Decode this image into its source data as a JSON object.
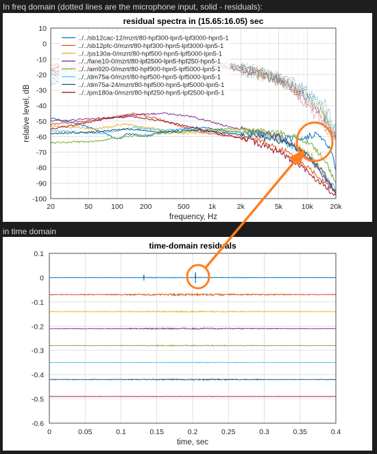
{
  "captions": {
    "freq": "In freq domain (dotted lines are the microphone input, solid - residuals):",
    "time": "in time domain"
  },
  "annotation_color": "#ff7f1e",
  "chart_data": [
    {
      "type": "line",
      "title": "residual spectra in (15.65:16.05) sec",
      "xlabel": "frequency, Hz",
      "ylabel": "relative level, dB",
      "xscale": "log",
      "xlim": [
        20,
        20000
      ],
      "ylim": [
        -100,
        10
      ],
      "xticks": [
        "20",
        "50",
        "100",
        "200",
        "500",
        "1k",
        "2k",
        "5k",
        "10k",
        "20k"
      ],
      "yticks": [
        "10",
        "0",
        "-10",
        "-20",
        "-30",
        "-40",
        "-50",
        "-60",
        "-70",
        "-80",
        "-90",
        "-100"
      ],
      "grid": true,
      "legend_position": "top-left",
      "series": [
        {
          "name": "../../sb12cac-12/mzrt/80-hpf300-lpn5-lpf3000-hpn5-1",
          "color": "#0072bd",
          "residual": [
            [
              20,
              -48
            ],
            [
              40,
              -52
            ],
            [
              70,
              -57
            ],
            [
              100,
              -62
            ],
            [
              130,
              -58
            ],
            [
              200,
              -60
            ],
            [
              300,
              -57
            ],
            [
              500,
              -55
            ],
            [
              700,
              -54
            ],
            [
              1000,
              -55
            ],
            [
              2000,
              -57
            ],
            [
              4000,
              -58
            ],
            [
              6000,
              -61
            ],
            [
              9000,
              -62
            ],
            [
              12000,
              -58
            ],
            [
              15000,
              -62
            ],
            [
              18000,
              -70
            ],
            [
              20000,
              -82
            ]
          ],
          "input": [
            [
              20,
              -20
            ],
            [
              200,
              -12
            ],
            [
              600,
              -10
            ],
            [
              1200,
              -12
            ],
            [
              3000,
              -18
            ],
            [
              7000,
              -25
            ],
            [
              15000,
              -38
            ],
            [
              20000,
              -55
            ]
          ]
        },
        {
          "name": "../../sb12pfc-0/mzrt/80-hpf300-hpn5-lpf3000-lpn5-1",
          "color": "#d95319",
          "residual": [
            [
              20,
              -52
            ],
            [
              50,
              -50
            ],
            [
              100,
              -47
            ],
            [
              150,
              -45
            ],
            [
              250,
              -48
            ],
            [
              400,
              -52
            ],
            [
              700,
              -57
            ],
            [
              1500,
              -60
            ],
            [
              3000,
              -62
            ],
            [
              6000,
              -70
            ],
            [
              10000,
              -80
            ],
            [
              20000,
              -95
            ]
          ],
          "input": [
            [
              20,
              -14
            ],
            [
              200,
              -10
            ],
            [
              800,
              -10
            ],
            [
              2000,
              -15
            ],
            [
              5000,
              -22
            ],
            [
              12000,
              -40
            ],
            [
              20000,
              -60
            ]
          ]
        },
        {
          "name": "../../ps130a-0/mzrt/80-hpf500-hpn5-lpf5000-lpn5-1",
          "color": "#edb120",
          "residual": [
            [
              20,
              -53
            ],
            [
              60,
              -55
            ],
            [
              120,
              -52
            ],
            [
              250,
              -55
            ],
            [
              500,
              -58
            ],
            [
              1000,
              -56
            ],
            [
              2000,
              -57
            ],
            [
              4000,
              -59
            ],
            [
              7000,
              -65
            ],
            [
              11000,
              -72
            ],
            [
              15000,
              -85
            ],
            [
              20000,
              -96
            ]
          ],
          "input": [
            [
              20,
              -18
            ],
            [
              300,
              -12
            ],
            [
              1000,
              -14
            ],
            [
              3000,
              -20
            ],
            [
              8000,
              -30
            ],
            [
              16000,
              -48
            ],
            [
              20000,
              -62
            ]
          ]
        },
        {
          "name": "../../fane10-0/mzrt/80-lpf2500-lpn5-hpf250-hpn5-1",
          "color": "#7e2f8e",
          "residual": [
            [
              20,
              -50
            ],
            [
              80,
              -48
            ],
            [
              150,
              -46
            ],
            [
              300,
              -45
            ],
            [
              600,
              -47
            ],
            [
              1200,
              -52
            ],
            [
              2500,
              -57
            ],
            [
              5000,
              -60
            ],
            [
              8000,
              -68
            ],
            [
              13000,
              -80
            ],
            [
              20000,
              -97
            ]
          ],
          "input": [
            [
              20,
              -16
            ],
            [
              150,
              -12
            ],
            [
              500,
              -12
            ],
            [
              1500,
              -15
            ],
            [
              4000,
              -20
            ],
            [
              9000,
              -32
            ],
            [
              20000,
              -60
            ]
          ]
        },
        {
          "name": "../../am920-0/mzrt/80-hpf900-hpn5-lpf5000-lpn5-1",
          "color": "#77ac30",
          "residual": [
            [
              20,
              -64
            ],
            [
              60,
              -63
            ],
            [
              120,
              -60
            ],
            [
              300,
              -58
            ],
            [
              700,
              -56
            ],
            [
              1500,
              -55
            ],
            [
              3000,
              -56
            ],
            [
              6000,
              -58
            ],
            [
              10000,
              -63
            ],
            [
              15000,
              -74
            ],
            [
              20000,
              -90
            ]
          ],
          "input": [
            [
              20,
              -22
            ],
            [
              250,
              -14
            ],
            [
              900,
              -12
            ],
            [
              2500,
              -16
            ],
            [
              6000,
              -24
            ],
            [
              14000,
              -40
            ],
            [
              20000,
              -58
            ]
          ]
        },
        {
          "name": "../../dm75a-0/mzrt/80-hpf500-hpn5-lpf5000-lpn5-1",
          "color": "#4dbeee",
          "residual": [
            [
              20,
              -56
            ],
            [
              70,
              -58
            ],
            [
              150,
              -54
            ],
            [
              300,
              -56
            ],
            [
              600,
              -55
            ],
            [
              1200,
              -57
            ],
            [
              2500,
              -58
            ],
            [
              5000,
              -62
            ],
            [
              9000,
              -70
            ],
            [
              14000,
              -82
            ],
            [
              20000,
              -95
            ]
          ],
          "input": [
            [
              20,
              -24
            ],
            [
              200,
              -15
            ],
            [
              700,
              -13
            ],
            [
              2000,
              -17
            ],
            [
              5000,
              -23
            ],
            [
              11000,
              -35
            ],
            [
              20000,
              -56
            ]
          ]
        },
        {
          "name": "../../dm75a-24/mzrt/80-hpf500-hpn5-lpf5000-lpn5-1",
          "color": "#1f4e79",
          "residual": [
            [
              20,
              -58
            ],
            [
              60,
              -57
            ],
            [
              130,
              -55
            ],
            [
              300,
              -57
            ],
            [
              700,
              -56
            ],
            [
              1500,
              -58
            ],
            [
              3000,
              -60
            ],
            [
              6000,
              -64
            ],
            [
              10000,
              -72
            ],
            [
              15000,
              -84
            ],
            [
              20000,
              -97
            ]
          ],
          "input": [
            [
              20,
              -26
            ],
            [
              300,
              -16
            ],
            [
              900,
              -14
            ],
            [
              2500,
              -18
            ],
            [
              6000,
              -26
            ],
            [
              13000,
              -40
            ],
            [
              20000,
              -60
            ]
          ]
        },
        {
          "name": "../../pm180a-0/mzrt/80-hpf250-hpn5-lpf2500-lpn5-1",
          "color": "#a2142f",
          "residual": [
            [
              20,
              -55
            ],
            [
              40,
              -52
            ],
            [
              80,
              -48
            ],
            [
              150,
              -47
            ],
            [
              300,
              -50
            ],
            [
              600,
              -54
            ],
            [
              1200,
              -58
            ],
            [
              2500,
              -62
            ],
            [
              5000,
              -70
            ],
            [
              9000,
              -80
            ],
            [
              15000,
              -92
            ],
            [
              20000,
              -98
            ]
          ],
          "input": [
            [
              20,
              -18
            ],
            [
              120,
              -12
            ],
            [
              400,
              -11
            ],
            [
              1200,
              -14
            ],
            [
              3000,
              -19
            ],
            [
              7000,
              -28
            ],
            [
              20000,
              -62
            ]
          ]
        }
      ]
    },
    {
      "type": "line",
      "title": "time-domain residuals",
      "xlabel": "time, sec",
      "ylabel": "",
      "xlim": [
        0,
        0.4
      ],
      "ylim": [
        -0.6,
        0.1
      ],
      "xticks": [
        "0",
        "0.05",
        "0.1",
        "0.15",
        "0.2",
        "0.25",
        "0.3",
        "0.35",
        "0.4"
      ],
      "yticks": [
        "0.1",
        "0",
        "-0.1",
        "-0.2",
        "-0.3",
        "-0.4",
        "-0.5",
        "-0.6"
      ],
      "grid": true,
      "traces": [
        {
          "offset": 0,
          "color": "#0072bd",
          "noise": 0.0015,
          "spikes": [
            [
              0.132,
              0.012
            ],
            [
              0.204,
              0.022
            ]
          ]
        },
        {
          "offset": -0.07,
          "color": "#d95319",
          "noise": 0.004
        },
        {
          "offset": -0.14,
          "color": "#edb120",
          "noise": 0.0025
        },
        {
          "offset": -0.21,
          "color": "#7e2f8e",
          "noise": 0.003
        },
        {
          "offset": -0.28,
          "color": "#77ac30",
          "noise": 0.002
        },
        {
          "offset": -0.35,
          "color": "#4dbeee",
          "noise": 0.0015
        },
        {
          "offset": -0.42,
          "color": "#1f4e79",
          "noise": 0.0025
        },
        {
          "offset": -0.49,
          "color": "#a2142f",
          "noise": 0.001
        }
      ]
    }
  ]
}
